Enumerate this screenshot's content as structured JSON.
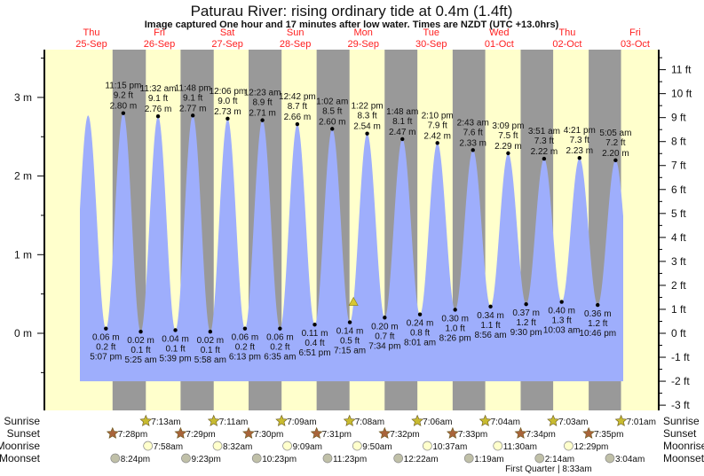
{
  "chart_data": {
    "type": "area",
    "title": "Paturau River: rising  ordinary tide at 0.4m (1.4ft)",
    "subtitle": "Image captured One hour and 17 minutes after low water. Times are NZDT (UTC +13.0hrs)",
    "days": [
      {
        "dow": "Thu",
        "date": "25-Sep"
      },
      {
        "dow": "Fri",
        "date": "26-Sep"
      },
      {
        "dow": "Sat",
        "date": "27-Sep"
      },
      {
        "dow": "Sun",
        "date": "28-Sep"
      },
      {
        "dow": "Mon",
        "date": "29-Sep"
      },
      {
        "dow": "Tue",
        "date": "30-Sep"
      },
      {
        "dow": "Wed",
        "date": "01-Oct"
      },
      {
        "dow": "Thu",
        "date": "02-Oct"
      },
      {
        "dow": "Fri",
        "date": "03-Oct"
      }
    ],
    "y_left": {
      "unit": "m",
      "ticks": [
        "0 m",
        "1 m",
        "2 m",
        "3 m"
      ],
      "values": [
        0,
        1,
        2,
        3
      ]
    },
    "y_right": {
      "unit": "ft",
      "ticks": [
        "-3 ft",
        "-2 ft",
        "-1 ft",
        "0 ft",
        "1 ft",
        "2 ft",
        "3 ft",
        "4 ft",
        "5 ft",
        "6 ft",
        "7 ft",
        "8 ft",
        "9 ft",
        "10 ft",
        "11 ft"
      ],
      "values": [
        -3,
        -2,
        -1,
        0,
        1,
        2,
        3,
        4,
        5,
        6,
        7,
        8,
        9,
        10,
        11
      ]
    },
    "colors": {
      "water": "#9eaefc",
      "day": "#ffffcc",
      "night": "#999999",
      "day_label": "#ff2020",
      "sun_rise": "#c8bb30",
      "sun_set": "#a8643a",
      "moon_rise": "#ffffcc",
      "moon_set": "#c0c0a8",
      "current_marker": "#d8c832"
    },
    "unlabeled_first_high": {
      "date": "25-Sep",
      "time": "10:50 am",
      "m": 2.77
    },
    "extremes": [
      {
        "type": "low",
        "date": "25-Sep",
        "time": "5:07 pm",
        "m": "0.06 m",
        "ft": "0.2 ft",
        "v": 0.06
      },
      {
        "type": "high",
        "date": "25-Sep",
        "time": "11:15 pm",
        "m": "2.80 m",
        "ft": "9.2 ft",
        "v": 2.8
      },
      {
        "type": "low",
        "date": "26-Sep",
        "time": "5:25 am",
        "m": "0.02 m",
        "ft": "0.1 ft",
        "v": 0.02
      },
      {
        "type": "high",
        "date": "26-Sep",
        "time": "11:32 am",
        "m": "2.76 m",
        "ft": "9.1 ft",
        "v": 2.76
      },
      {
        "type": "low",
        "date": "26-Sep",
        "time": "5:39 pm",
        "m": "0.04 m",
        "ft": "0.1 ft",
        "v": 0.04
      },
      {
        "type": "high",
        "date": "26-Sep",
        "time": "11:48 pm",
        "m": "2.77 m",
        "ft": "9.1 ft",
        "v": 2.77
      },
      {
        "type": "low",
        "date": "27-Sep",
        "time": "5:58 am",
        "m": "0.02 m",
        "ft": "0.1 ft",
        "v": 0.02
      },
      {
        "type": "high",
        "date": "27-Sep",
        "time": "12:06 pm",
        "m": "2.73 m",
        "ft": "9.0 ft",
        "v": 2.73
      },
      {
        "type": "low",
        "date": "27-Sep",
        "time": "6:13 pm",
        "m": "0.06 m",
        "ft": "0.2 ft",
        "v": 0.06
      },
      {
        "type": "high",
        "date": "28-Sep",
        "time": "12:23 am",
        "m": "2.71 m",
        "ft": "8.9 ft",
        "v": 2.71
      },
      {
        "type": "low",
        "date": "28-Sep",
        "time": "6:35 am",
        "m": "0.06 m",
        "ft": "0.2 ft",
        "v": 0.06
      },
      {
        "type": "high",
        "date": "28-Sep",
        "time": "12:42 pm",
        "m": "2.66 m",
        "ft": "8.7 ft",
        "v": 2.66
      },
      {
        "type": "low",
        "date": "28-Sep",
        "time": "6:51 pm",
        "m": "0.11 m",
        "ft": "0.4 ft",
        "v": 0.11
      },
      {
        "type": "high",
        "date": "29-Sep",
        "time": "1:02 am",
        "m": "2.60 m",
        "ft": "8.5 ft",
        "v": 2.6
      },
      {
        "type": "low",
        "date": "29-Sep",
        "time": "7:15 am",
        "m": "0.14 m",
        "ft": "0.5 ft",
        "v": 0.14
      },
      {
        "type": "high",
        "date": "29-Sep",
        "time": "1:22 pm",
        "m": "2.54 m",
        "ft": "8.3 ft",
        "v": 2.54
      },
      {
        "type": "low",
        "date": "29-Sep",
        "time": "7:34 pm",
        "m": "0.20 m",
        "ft": "0.7 ft",
        "v": 0.2
      },
      {
        "type": "high",
        "date": "30-Sep",
        "time": "1:48 am",
        "m": "2.47 m",
        "ft": "8.1 ft",
        "v": 2.47
      },
      {
        "type": "low",
        "date": "30-Sep",
        "time": "8:01 am",
        "m": "0.24 m",
        "ft": "0.8 ft",
        "v": 0.24
      },
      {
        "type": "high",
        "date": "30-Sep",
        "time": "2:10 pm",
        "m": "2.42 m",
        "ft": "7.9 ft",
        "v": 2.42
      },
      {
        "type": "low",
        "date": "30-Sep",
        "time": "8:26 pm",
        "m": "0.30 m",
        "ft": "1.0 ft",
        "v": 0.3
      },
      {
        "type": "high",
        "date": "01-Oct",
        "time": "2:43 am",
        "m": "2.33 m",
        "ft": "7.6 ft",
        "v": 2.33
      },
      {
        "type": "low",
        "date": "01-Oct",
        "time": "8:56 am",
        "m": "0.34 m",
        "ft": "1.1 ft",
        "v": 0.34
      },
      {
        "type": "high",
        "date": "01-Oct",
        "time": "3:09 pm",
        "m": "2.29 m",
        "ft": "7.5 ft",
        "v": 2.29
      },
      {
        "type": "low",
        "date": "01-Oct",
        "time": "9:30 pm",
        "m": "0.37 m",
        "ft": "1.2 ft",
        "v": 0.37
      },
      {
        "type": "high",
        "date": "02-Oct",
        "time": "3:51 am",
        "m": "2.22 m",
        "ft": "7.3 ft",
        "v": 2.22
      },
      {
        "type": "low",
        "date": "02-Oct",
        "time": "10:03 am",
        "m": "0.40 m",
        "ft": "1.3 ft",
        "v": 0.4
      },
      {
        "type": "high",
        "date": "02-Oct",
        "time": "4:21 pm",
        "m": "2.23 m",
        "ft": "7.3 ft",
        "v": 2.23
      },
      {
        "type": "low",
        "date": "02-Oct",
        "time": "10:46 pm",
        "m": "0.36 m",
        "ft": "1.2 ft",
        "v": 0.36
      },
      {
        "type": "high",
        "date": "03-Oct",
        "time": "5:05 am",
        "m": "2.20 m",
        "ft": "7.2 ft",
        "v": 2.2
      }
    ],
    "current": {
      "date": "29-Sep",
      "time": "8:32 am",
      "m": 0.4
    },
    "rows": {
      "sunrise": "Sunrise",
      "sunset": "Sunset",
      "moonrise": "Moonrise",
      "moonset": "Moonset"
    },
    "sunrise": [
      {
        "date": "26-Sep",
        "time": "7:13am"
      },
      {
        "date": "27-Sep",
        "time": "7:11am"
      },
      {
        "date": "28-Sep",
        "time": "7:09am"
      },
      {
        "date": "29-Sep",
        "time": "7:08am"
      },
      {
        "date": "30-Sep",
        "time": "7:06am"
      },
      {
        "date": "01-Oct",
        "time": "7:04am"
      },
      {
        "date": "02-Oct",
        "time": "7:03am"
      },
      {
        "date": "03-Oct",
        "time": "7:01am"
      }
    ],
    "sunset": [
      {
        "date": "25-Sep",
        "time": "7:28pm"
      },
      {
        "date": "26-Sep",
        "time": "7:29pm"
      },
      {
        "date": "27-Sep",
        "time": "7:30pm"
      },
      {
        "date": "28-Sep",
        "time": "7:31pm"
      },
      {
        "date": "29-Sep",
        "time": "7:32pm"
      },
      {
        "date": "30-Sep",
        "time": "7:33pm"
      },
      {
        "date": "01-Oct",
        "time": "7:34pm"
      },
      {
        "date": "02-Oct",
        "time": "7:35pm"
      }
    ],
    "moonrise": [
      {
        "date": "26-Sep",
        "time": "7:58am"
      },
      {
        "date": "27-Sep",
        "time": "8:32am"
      },
      {
        "date": "28-Sep",
        "time": "9:09am"
      },
      {
        "date": "29-Sep",
        "time": "9:50am"
      },
      {
        "date": "30-Sep",
        "time": "10:37am"
      },
      {
        "date": "01-Oct",
        "time": "11:30am"
      },
      {
        "date": "02-Oct",
        "time": "12:29pm"
      }
    ],
    "moonset": [
      {
        "date": "25-Sep",
        "time": "8:24pm"
      },
      {
        "date": "26-Sep",
        "time": "9:23pm"
      },
      {
        "date": "27-Sep",
        "time": "10:23pm"
      },
      {
        "date": "28-Sep",
        "time": "11:23pm"
      },
      {
        "date": "30-Sep",
        "time": "12:22am"
      },
      {
        "date": "01-Oct",
        "time": "1:19am"
      },
      {
        "date": "02-Oct",
        "time": "2:14am"
      },
      {
        "date": "03-Oct",
        "time": "3:04am"
      }
    ],
    "moon_phase": {
      "label": "First Quarter | 8:33am",
      "date": "02-Oct",
      "time": "8:33am"
    }
  }
}
